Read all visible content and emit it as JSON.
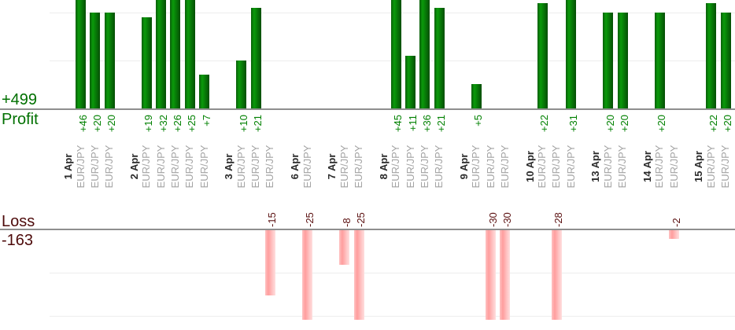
{
  "chart_data": {
    "type": "bar",
    "description_visible_text_only": true,
    "panels": {
      "profit": {
        "total": "+499",
        "label": "Profit",
        "gridline_values": [
          10,
          20
        ],
        "visible_axis_range": [
          0,
          23
        ],
        "bar_color": "#0a9a0a",
        "text_color": "#007000"
      },
      "loss": {
        "total": "-163",
        "label": "Loss",
        "gridline_values": [
          -10,
          -20
        ],
        "visible_axis_range": [
          0,
          -21
        ],
        "bar_color": "#ff9d9d",
        "text_color": "#4d0a0a"
      }
    },
    "groups": [
      {
        "date": "1 Apr",
        "trades": [
          {
            "pair": "EUR/JPY",
            "value": 46,
            "label": "+46"
          },
          {
            "pair": "EUR/JPY",
            "value": 20,
            "label": "+20"
          },
          {
            "pair": "EUR/JPY",
            "value": 20,
            "label": "+20"
          }
        ]
      },
      {
        "date": "2 Apr",
        "trades": [
          {
            "pair": "EUR/JPY",
            "value": 19,
            "label": "+19"
          },
          {
            "pair": "EUR/JPY",
            "value": 32,
            "label": "+32"
          },
          {
            "pair": "EUR/JPY",
            "value": 26,
            "label": "+26"
          },
          {
            "pair": "EUR/JPY",
            "value": 25,
            "label": "+25"
          },
          {
            "pair": "EUR/JPY",
            "value": 7,
            "label": "+7"
          }
        ]
      },
      {
        "date": "3 Apr",
        "trades": [
          {
            "pair": "EUR/JPY",
            "value": 10,
            "label": "+10"
          },
          {
            "pair": "EUR/JPY",
            "value": 21,
            "label": "+21"
          },
          {
            "pair": "EUR/JPY",
            "value": -15,
            "label": "-15"
          }
        ]
      },
      {
        "date": "6 Apr",
        "trades": [
          {
            "pair": "EUR/JPY",
            "value": -25,
            "label": "-25"
          }
        ]
      },
      {
        "date": "7 Apr",
        "trades": [
          {
            "pair": "EUR/JPY",
            "value": -8,
            "label": "-8"
          },
          {
            "pair": "EUR/JPY",
            "value": -25,
            "label": "-25"
          }
        ]
      },
      {
        "date": "8 Apr",
        "trades": [
          {
            "pair": "EUR/JPY",
            "value": 45,
            "label": "+45"
          },
          {
            "pair": "EUR/JPY",
            "value": 11,
            "label": "+11"
          },
          {
            "pair": "EUR/JPY",
            "value": 36,
            "label": "+36"
          },
          {
            "pair": "EUR/JPY",
            "value": 21,
            "label": "+21"
          }
        ]
      },
      {
        "date": "9 Apr",
        "trades": [
          {
            "pair": "EUR/JPY",
            "value": 5,
            "label": "+5"
          },
          {
            "pair": "EUR/JPY",
            "value": -30,
            "label": "-30"
          },
          {
            "pair": "EUR/JPY",
            "value": -30,
            "label": "-30"
          }
        ]
      },
      {
        "date": "10 Apr",
        "trades": [
          {
            "pair": "EUR/JPY",
            "value": 22,
            "label": "+22"
          },
          {
            "pair": "EUR/JPY",
            "value": -28,
            "label": "-28"
          },
          {
            "pair": "EUR/JPY",
            "value": 31,
            "label": "+31"
          }
        ]
      },
      {
        "date": "13 Apr",
        "trades": [
          {
            "pair": "EUR/JPY",
            "value": 20,
            "label": "+20"
          },
          {
            "pair": "EUR/JPY",
            "value": 20,
            "label": "+20"
          }
        ]
      },
      {
        "date": "14 Apr",
        "trades": [
          {
            "pair": "EUR/JPY",
            "value": 20,
            "label": "+20"
          },
          {
            "pair": "EUR/JPY",
            "value": -2,
            "label": "-2"
          }
        ]
      },
      {
        "date": "15 Apr",
        "trades": [
          {
            "pair": "EUR/JPY",
            "value": 22,
            "label": "+22"
          },
          {
            "pair": "EUR/JPY",
            "value": 20,
            "label": "+20"
          }
        ]
      }
    ]
  }
}
